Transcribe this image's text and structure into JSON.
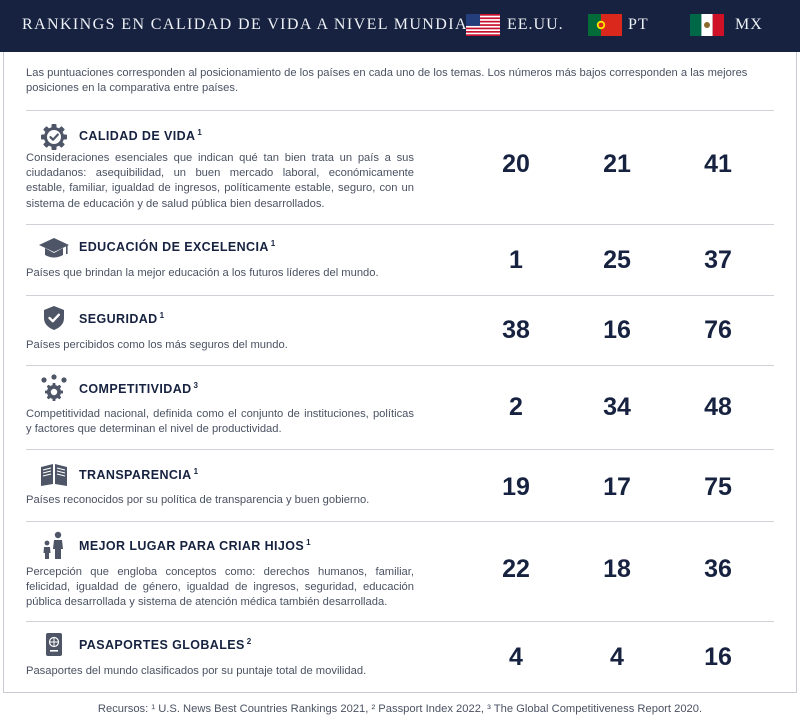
{
  "header": {
    "title": "RANKINGS EN CALIDAD DE VIDA A NIVEL MUNDIAL",
    "countries": [
      {
        "label": "EE.UU.",
        "flag": "us-flag-icon"
      },
      {
        "label": "PT",
        "flag": "portugal-flag-icon"
      },
      {
        "label": "MX",
        "flag": "mexico-flag-icon"
      }
    ]
  },
  "intro": "Las puntuaciones corresponden al posicionamiento de los países en cada uno de los temas. Los números más bajos corresponden a las mejores posiciones en la comparativa entre países.",
  "rows": [
    {
      "title": "CALIDAD DE VIDA",
      "sup": "1",
      "icon": "gear-check-icon",
      "desc": "Consideraciones esenciales que indican qué tan bien trata un país a sus ciudadanos: asequibilidad, un buen mercado laboral, económicamente estable, familiar, igualdad de ingresos, políticamente estable, seguro, con un sistema de educación y de salud pública bien desarrollados.",
      "us": "20",
      "pt": "21",
      "mx": "41"
    },
    {
      "title": "EDUCACIÓN DE EXCELENCIA",
      "sup": "1",
      "icon": "graduation-cap-icon",
      "desc": "Países que brindan la mejor educación a los futuros líderes del mundo.",
      "us": "1",
      "pt": "25",
      "mx": "37"
    },
    {
      "title": "SEGURIDAD",
      "sup": "1",
      "icon": "shield-check-icon",
      "desc": "Países percibidos como los más seguros del mundo.",
      "us": "38",
      "pt": "16",
      "mx": "76"
    },
    {
      "title": "COMPETITIVIDAD",
      "sup": "3",
      "icon": "gears-arrows-icon",
      "desc": "Competitividad nacional, definida como el conjunto de instituciones, políticas y factores que determinan el nivel de productividad.",
      "us": "2",
      "pt": "34",
      "mx": "48"
    },
    {
      "title": "TRANSPARENCIA",
      "sup": "1",
      "icon": "open-book-icon",
      "desc": "Países reconocidos por su política de transparencia y buen gobierno.",
      "us": "19",
      "pt": "17",
      "mx": "75"
    },
    {
      "title": "MEJOR LUGAR PARA CRIAR HIJOS",
      "sup": "1",
      "icon": "parent-child-icon",
      "desc": "Percepción que engloba conceptos como: derechos humanos, familiar, felicidad, igualdad de género, igualdad de ingresos, seguridad, educación pública desarrollada y sistema de atención médica también desarrollada.",
      "us": "22",
      "pt": "18",
      "mx": "36"
    },
    {
      "title": "PASAPORTES GLOBALES",
      "sup": "2",
      "icon": "passport-icon",
      "desc": "Pasaportes del mundo clasificados por su puntaje total de movilidad.",
      "us": "4",
      "pt": "4",
      "mx": "16"
    }
  ],
  "footer": "Recursos: ¹ U.S. News Best Countries Rankings 2021, ² Passport Index 2022, ³ The Global Competitiveness Report 2020."
}
